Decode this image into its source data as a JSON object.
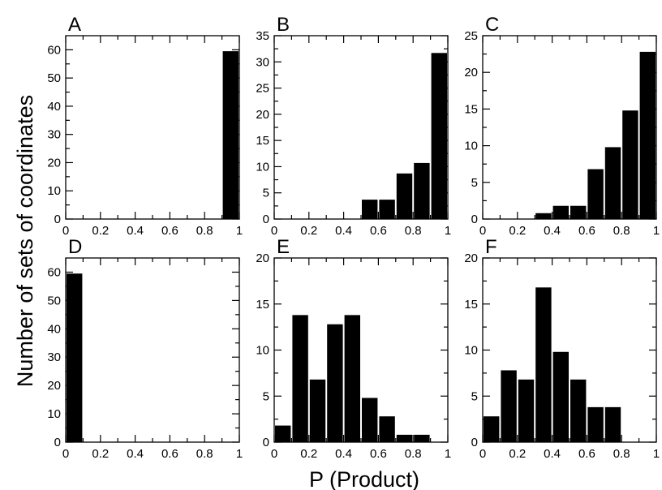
{
  "figure": {
    "ylabel": "Number of sets of coordinates",
    "xlabel": "P (Product)"
  },
  "chart_data": [
    {
      "type": "bar",
      "panel": "A",
      "x_bin_start": [
        0.9
      ],
      "values": [
        59.5
      ],
      "bin_width": 0.1,
      "xlim": [
        0,
        1
      ],
      "ylim": [
        0,
        65
      ],
      "xticks": [
        "0",
        "0.2",
        "0.4",
        "0.6",
        "0.8",
        "1"
      ],
      "yticks": [
        0,
        10,
        20,
        30,
        40,
        50,
        60
      ],
      "ytick_labels": [
        "0",
        "10",
        "20",
        "30",
        "40",
        "50",
        "60"
      ],
      "xlabel": "",
      "ylabel": "",
      "grid": false
    },
    {
      "type": "bar",
      "panel": "B",
      "x_bin_start": [
        0.5,
        0.6,
        0.7,
        0.8,
        0.9
      ],
      "values": [
        3.7,
        3.7,
        8.7,
        10.7,
        31.7
      ],
      "bin_width": 0.1,
      "xlim": [
        0,
        1
      ],
      "ylim": [
        0,
        35
      ],
      "xticks": [
        "0",
        "0.2",
        "0.4",
        "0.6",
        "0.8",
        "1"
      ],
      "yticks": [
        0,
        5,
        10,
        15,
        20,
        25,
        30,
        35
      ],
      "ytick_labels": [
        "0",
        "5",
        "10",
        "15",
        "20",
        "25",
        "30",
        "35"
      ],
      "xlabel": "",
      "ylabel": "",
      "grid": false
    },
    {
      "type": "bar",
      "panel": "C",
      "x_bin_start": [
        0.3,
        0.4,
        0.5,
        0.6,
        0.7,
        0.8,
        0.9
      ],
      "values": [
        0.8,
        1.8,
        1.8,
        6.8,
        9.8,
        14.8,
        22.8
      ],
      "bin_width": 0.1,
      "xlim": [
        0,
        1
      ],
      "ylim": [
        0,
        25
      ],
      "xticks": [
        "0",
        "0.2",
        "0.4",
        "0.6",
        "0.8",
        "1"
      ],
      "yticks": [
        0,
        5,
        10,
        15,
        20,
        25
      ],
      "ytick_labels": [
        "0",
        "5",
        "10",
        "15",
        "20",
        "25"
      ],
      "xlabel": "",
      "ylabel": "",
      "grid": false
    },
    {
      "type": "bar",
      "panel": "D",
      "x_bin_start": [
        0.0
      ],
      "values": [
        59.5
      ],
      "bin_width": 0.1,
      "xlim": [
        0,
        1
      ],
      "ylim": [
        0,
        65
      ],
      "xticks": [
        "0",
        "0.2",
        "0.4",
        "0.6",
        "0.8",
        "1"
      ],
      "yticks": [
        0,
        10,
        20,
        30,
        40,
        50,
        60
      ],
      "ytick_labels": [
        "0",
        "10",
        "20",
        "30",
        "40",
        "50",
        "60"
      ],
      "xlabel": "",
      "ylabel": "",
      "grid": false
    },
    {
      "type": "bar",
      "panel": "E",
      "x_bin_start": [
        0.0,
        0.1,
        0.2,
        0.3,
        0.4,
        0.5,
        0.6,
        0.7,
        0.8
      ],
      "values": [
        1.8,
        13.8,
        6.8,
        12.8,
        13.8,
        4.8,
        2.8,
        0.8,
        0.8
      ],
      "bin_width": 0.1,
      "xlim": [
        0,
        1
      ],
      "ylim": [
        0,
        20
      ],
      "xticks": [
        "0",
        "0.2",
        "0.4",
        "0.6",
        "0.8",
        "1"
      ],
      "yticks": [
        0,
        5,
        10,
        15,
        20
      ],
      "ytick_labels": [
        "0",
        "5",
        "10",
        "15",
        "20"
      ],
      "xlabel": "",
      "ylabel": "",
      "grid": false
    },
    {
      "type": "bar",
      "panel": "F",
      "x_bin_start": [
        0.0,
        0.1,
        0.2,
        0.3,
        0.4,
        0.5,
        0.6,
        0.7
      ],
      "values": [
        2.8,
        7.8,
        6.8,
        16.8,
        9.8,
        6.8,
        3.8,
        3.8
      ],
      "bin_width": 0.1,
      "xlim": [
        0,
        1
      ],
      "ylim": [
        0,
        20
      ],
      "xticks": [
        "0",
        "0.2",
        "0.4",
        "0.6",
        "0.8",
        "1"
      ],
      "yticks": [
        0,
        5,
        10,
        15,
        20
      ],
      "ytick_labels": [
        "0",
        "5",
        "10",
        "15",
        "20"
      ],
      "xlabel": "",
      "ylabel": "",
      "grid": false
    }
  ]
}
